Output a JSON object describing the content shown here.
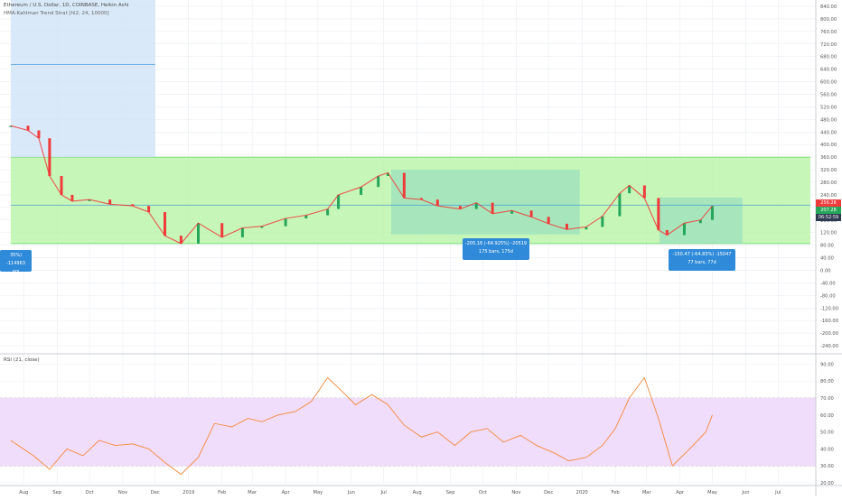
{
  "header": {
    "title": "Ethereum / U.S. Dollar, 1D, COINBASE, Heikin Ashi",
    "indicator": "HMA-Kahlman Trend Strat [hl2, 24, 10000]"
  },
  "rsi": {
    "label": "RSI (21, close)"
  },
  "price_tags": [
    {
      "value": "256.26",
      "color": "#ef3b3b"
    },
    {
      "value": "207.28",
      "color": "#26a65b"
    },
    {
      "value": "06:52:59",
      "color": "#2f3b52"
    }
  ],
  "callouts": [
    {
      "line1": "35%) -114963",
      "line2": "ars"
    },
    {
      "line1": "-205.16 (-64.925%) -20519",
      "line2": "175 bars, 175d"
    },
    {
      "line1": "-150.47 (-64.83%) -15047",
      "line2": "77 bars, 77d"
    }
  ],
  "colors": {
    "up_candle": "#26a65b",
    "down_candle": "#ef3b3b",
    "green_zone": "#b9f5a6",
    "blue_zone": "#cfe3f7",
    "teal_box": "#8dd8c0",
    "rsi_band": "#f0dcfb",
    "rsi_line": "#f5893a",
    "callout": "#2f8bd9"
  },
  "chart_data": [
    {
      "type": "line",
      "title": "Ethereum / U.S. Dollar, 1D, COINBASE, Heikin Ashi",
      "ylim": [
        -260,
        860
      ],
      "y_tick_labels": [
        "840.00",
        "800.00",
        "760.00",
        "720.00",
        "680.00",
        "640.00",
        "600.00",
        "560.00",
        "520.00",
        "480.00",
        "440.00",
        "400.00",
        "360.00",
        "320.00",
        "280.00",
        "240.00",
        "200.00",
        "160.00",
        "120.00",
        "80.00",
        "40.00",
        "0.00",
        "-40.00",
        "-80.00",
        "-120.00",
        "-160.00",
        "-200.00",
        "-240.00"
      ],
      "x_tick_labels": [
        "Aug",
        "Sep",
        "Oct",
        "Nov",
        "Dec",
        "2019",
        "Feb",
        "Mar",
        "Apr",
        "May",
        "Jun",
        "Jul",
        "Aug",
        "Sep",
        "Oct",
        "Nov",
        "Dec",
        "2020",
        "Feb",
        "Mar",
        "Apr",
        "May",
        "Jun",
        "Jul"
      ],
      "x": [
        "2018-07-20",
        "2018-08-05",
        "2018-08-15",
        "2018-08-25",
        "2018-09-05",
        "2018-09-15",
        "2018-10-01",
        "2018-10-20",
        "2018-11-10",
        "2018-11-25",
        "2018-12-10",
        "2018-12-25",
        "2019-01-10",
        "2019-02-01",
        "2019-02-20",
        "2019-03-10",
        "2019-04-01",
        "2019-04-20",
        "2019-05-10",
        "2019-05-20",
        "2019-06-10",
        "2019-06-26",
        "2019-07-05",
        "2019-07-20",
        "2019-08-05",
        "2019-08-20",
        "2019-09-10",
        "2019-09-25",
        "2019-10-10",
        "2019-10-28",
        "2019-11-15",
        "2019-12-01",
        "2019-12-18",
        "2020-01-05",
        "2020-01-20",
        "2020-02-05",
        "2020-02-14",
        "2020-02-28",
        "2020-03-12",
        "2020-03-20",
        "2020-04-05",
        "2020-04-20",
        "2020-05-01"
      ],
      "series": [
        {
          "values": [
            460,
            445,
            420,
            300,
            240,
            220,
            225,
            210,
            205,
            185,
            110,
            85,
            150,
            105,
            135,
            140,
            165,
            175,
            195,
            240,
            265,
            300,
            310,
            230,
            225,
            205,
            195,
            215,
            180,
            190,
            170,
            148,
            130,
            138,
            172,
            245,
            270,
            230,
            128,
            112,
            150,
            160,
            205
          ]
        }
      ],
      "zones": [
        {
          "label": "green",
          "y_range": [
            85,
            360
          ],
          "x_range": [
            "2018-07-20",
            "2020-07-31"
          ]
        },
        {
          "label": "blue",
          "y_range": [
            360,
            860
          ],
          "x_range": [
            "2018-07-20",
            "2018-12-01"
          ]
        },
        {
          "label": "measure-1",
          "y_range": [
            114,
            320
          ],
          "x_range": [
            "2019-07-08",
            "2019-12-30"
          ]
        },
        {
          "label": "measure-2",
          "y_range": [
            84,
            232
          ],
          "x_range": [
            "2020-03-13",
            "2020-05-29"
          ]
        }
      ],
      "horizontal_lines": [
        {
          "y": 207.28,
          "x_range": [
            "2018-07-20",
            "2020-07-31"
          ]
        },
        {
          "y": 655,
          "x_range": [
            "2018-07-20",
            "2018-12-01"
          ]
        }
      ]
    },
    {
      "type": "line",
      "title": "RSI (21, close)",
      "ylim": [
        20,
        95
      ],
      "y_tick_labels": [
        "90.00",
        "80.00",
        "70.00",
        "60.00",
        "50.00",
        "40.00",
        "30.00",
        "20.00"
      ],
      "bands": {
        "overbought": 70,
        "oversold": 30
      },
      "x": [
        "2018-07-20",
        "2018-08-10",
        "2018-08-25",
        "2018-09-10",
        "2018-09-25",
        "2018-10-10",
        "2018-10-25",
        "2018-11-10",
        "2018-11-25",
        "2018-12-10",
        "2018-12-25",
        "2019-01-10",
        "2019-01-25",
        "2019-02-10",
        "2019-02-25",
        "2019-03-10",
        "2019-03-25",
        "2019-04-10",
        "2019-04-25",
        "2019-05-10",
        "2019-05-20",
        "2019-06-05",
        "2019-06-20",
        "2019-07-05",
        "2019-07-20",
        "2019-08-05",
        "2019-08-20",
        "2019-09-05",
        "2019-09-20",
        "2019-10-05",
        "2019-10-20",
        "2019-11-05",
        "2019-11-20",
        "2019-12-05",
        "2019-12-20",
        "2020-01-05",
        "2020-01-20",
        "2020-02-01",
        "2020-02-14",
        "2020-02-28",
        "2020-03-12",
        "2020-03-25",
        "2020-04-10",
        "2020-04-25",
        "2020-05-01"
      ],
      "series": [
        {
          "values": [
            45,
            36,
            28,
            40,
            36,
            45,
            42,
            43,
            40,
            32,
            25,
            35,
            55,
            53,
            58,
            56,
            60,
            62,
            68,
            82,
            76,
            66,
            72,
            66,
            54,
            47,
            50,
            42,
            50,
            52,
            44,
            48,
            42,
            38,
            33,
            35,
            42,
            52,
            70,
            82,
            58,
            30,
            40,
            50,
            60
          ]
        }
      ]
    }
  ]
}
